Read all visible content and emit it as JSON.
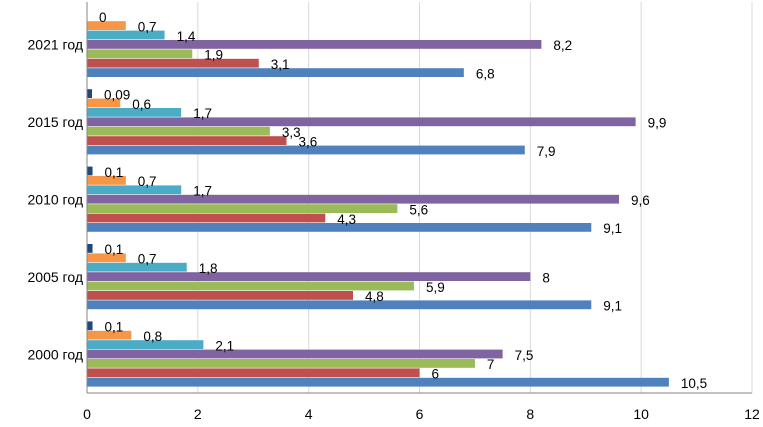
{
  "chart_data": {
    "type": "bar",
    "orientation": "horizontal",
    "categories": [
      "2000 год",
      "2005 год",
      "2010 год",
      "2015 год",
      "2021 год"
    ],
    "series": [
      {
        "color": "#4F81BD",
        "values": [
          10.5,
          9.1,
          9.1,
          7.9,
          6.8
        ],
        "labels": [
          "10,5",
          "9,1",
          "9,1",
          "7,9",
          "6,8"
        ]
      },
      {
        "color": "#C0504D",
        "values": [
          6,
          4.8,
          4.3,
          3.6,
          3.1
        ],
        "labels": [
          "6",
          "4,8",
          "4,3",
          "3,6",
          "3,1"
        ]
      },
      {
        "color": "#9BBB59",
        "values": [
          7,
          5.9,
          5.6,
          3.3,
          1.9
        ],
        "labels": [
          "7",
          "5,9",
          "5,6",
          "3,3",
          "1,9"
        ]
      },
      {
        "color": "#8064A2",
        "values": [
          7.5,
          8,
          9.6,
          9.9,
          8.2
        ],
        "labels": [
          "7,5",
          "8",
          "9,6",
          "9,9",
          "8,2"
        ]
      },
      {
        "color": "#4BACC6",
        "values": [
          2.1,
          1.8,
          1.7,
          1.7,
          1.4
        ],
        "labels": [
          "2,1",
          "1,8",
          "1,7",
          "1,7",
          "1,4"
        ]
      },
      {
        "color": "#F79646",
        "values": [
          0.8,
          0.7,
          0.7,
          0.6,
          0.7
        ],
        "labels": [
          "0,8",
          "0,7",
          "0,7",
          "0,6",
          "0,7"
        ]
      },
      {
        "color": "#1F497D",
        "values": [
          0.1,
          0.1,
          0.1,
          0.09,
          0
        ],
        "labels": [
          "0,1",
          "0,1",
          "0,1",
          "0,09",
          "0"
        ]
      }
    ],
    "xlim": [
      0,
      12
    ],
    "x_ticks": [
      0,
      2,
      4,
      6,
      8,
      10,
      12
    ],
    "x_tick_labels": [
      "0",
      "2",
      "4",
      "6",
      "8",
      "10",
      "12"
    ],
    "grid": "vertical",
    "legend": "none",
    "title": "",
    "xlabel": "",
    "ylabel": ""
  }
}
